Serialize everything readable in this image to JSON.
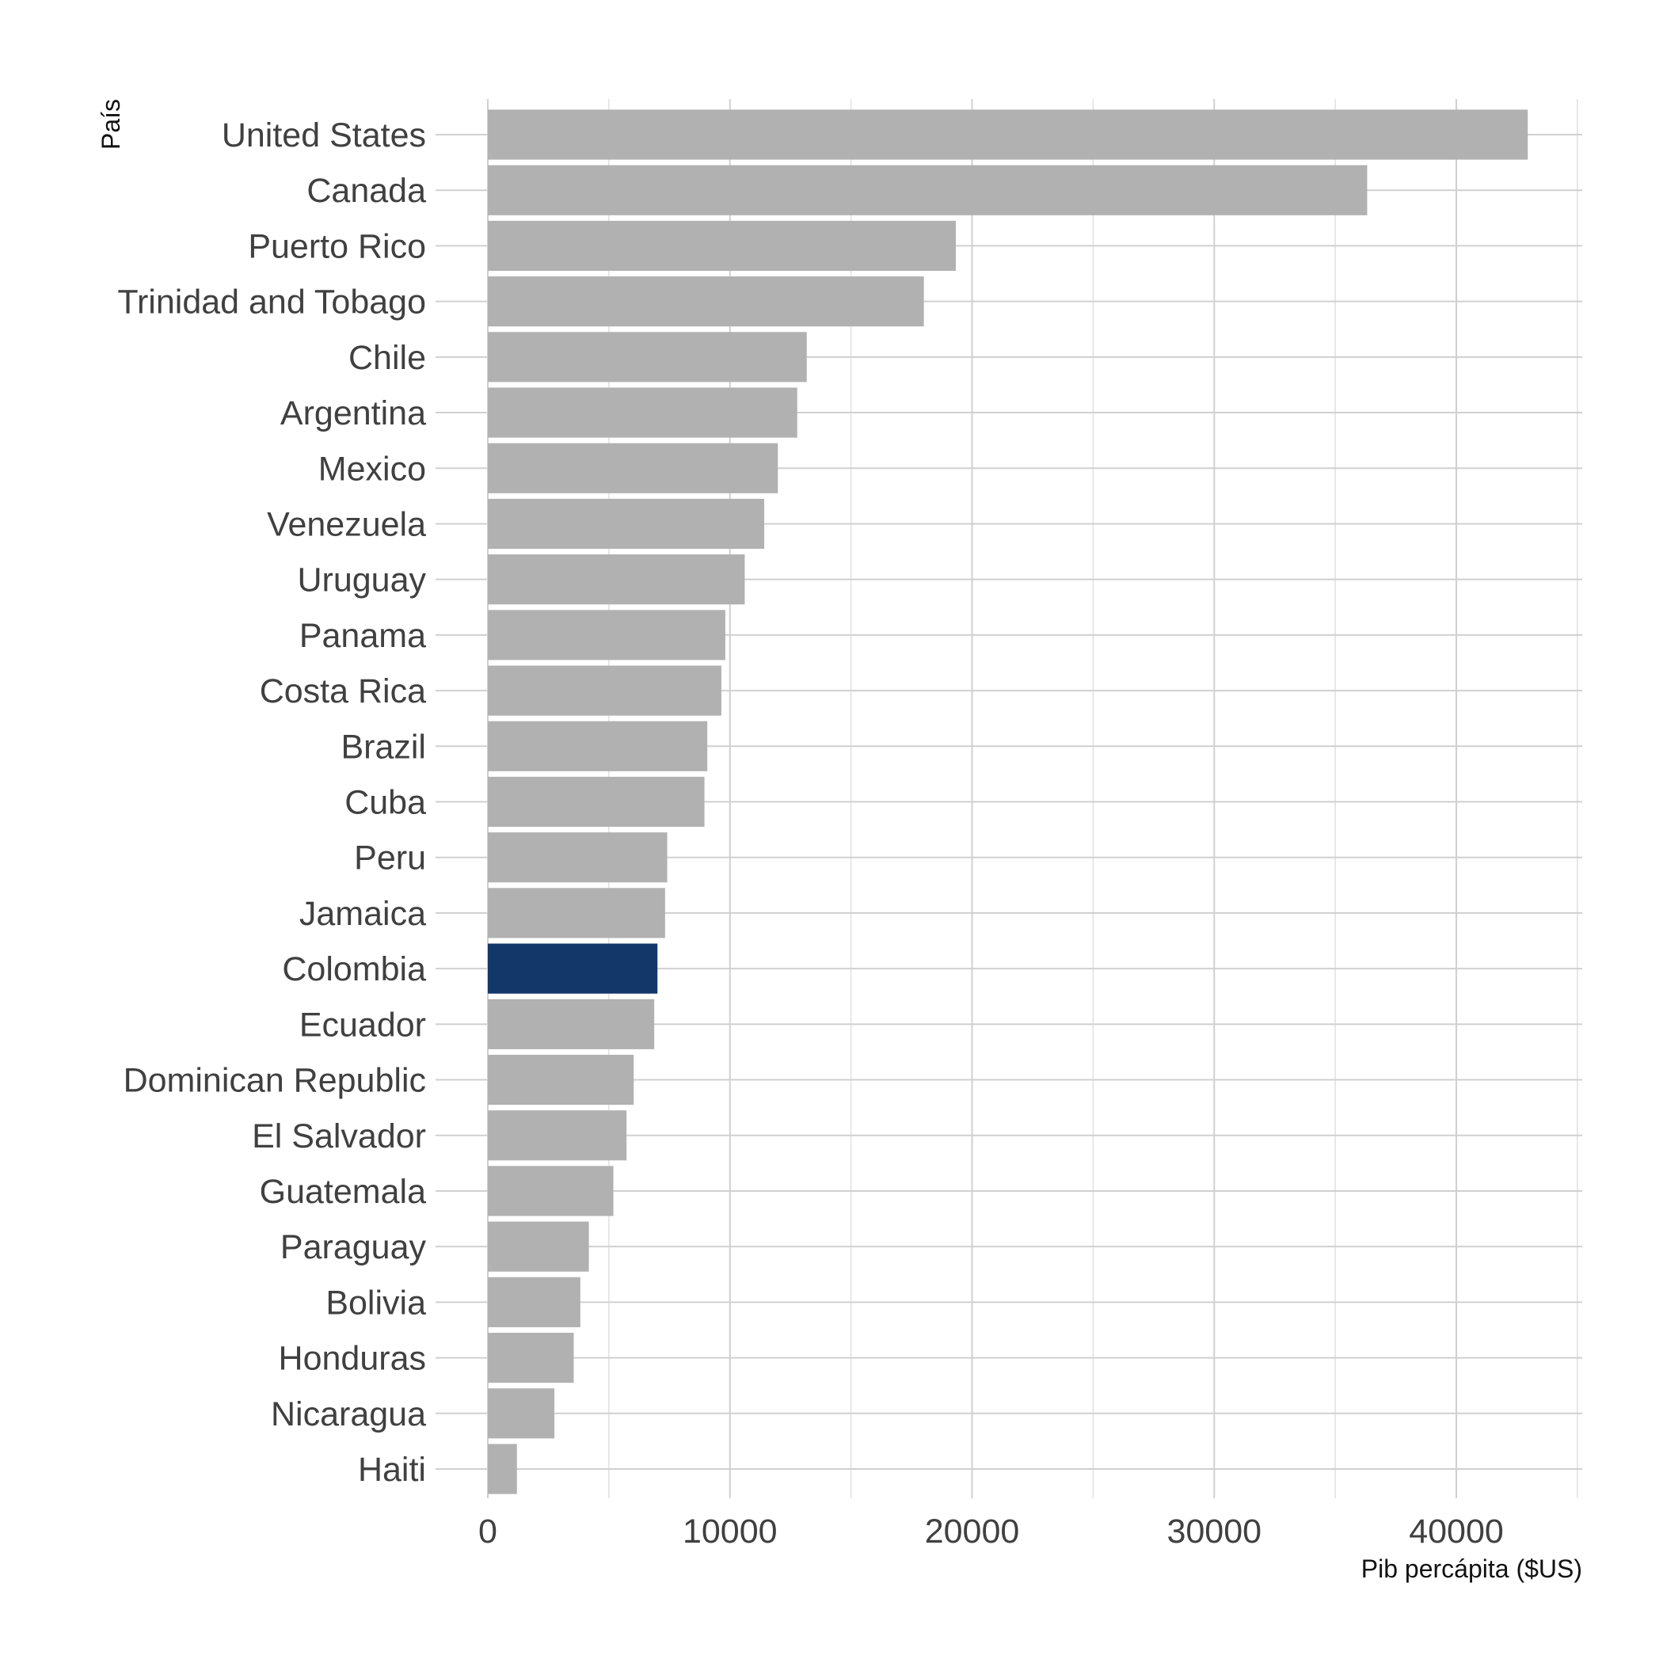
{
  "chart_data": {
    "type": "bar",
    "orientation": "horizontal",
    "categories": [
      "United States",
      "Canada",
      "Puerto Rico",
      "Trinidad and Tobago",
      "Chile",
      "Argentina",
      "Mexico",
      "Venezuela",
      "Uruguay",
      "Panama",
      "Costa Rica",
      "Brazil",
      "Cuba",
      "Peru",
      "Jamaica",
      "Colombia",
      "Ecuador",
      "Dominican Republic",
      "El Salvador",
      "Guatemala",
      "Paraguay",
      "Bolivia",
      "Honduras",
      "Nicaragua",
      "Haiti"
    ],
    "values": [
      42951,
      36319,
      19329,
      18009,
      13172,
      12779,
      11978,
      11416,
      10611,
      9809,
      9645,
      9066,
      8948,
      7409,
      7321,
      7007,
      6873,
      6025,
      5728,
      5186,
      4173,
      3822,
      3548,
      2749,
      1202
    ],
    "highlight": "Colombia",
    "colors": {
      "default": "#b1b1b1",
      "highlight": "#14376a"
    },
    "xlabel": "Pib percápita ($US)",
    "ylabel": "País",
    "xlim": [
      0,
      45000
    ],
    "x_ticks": [
      0,
      10000,
      20000,
      30000,
      40000
    ],
    "x_ticks_minor": [
      5000,
      15000,
      25000,
      35000,
      45000
    ],
    "grid": true,
    "legend": "none"
  }
}
